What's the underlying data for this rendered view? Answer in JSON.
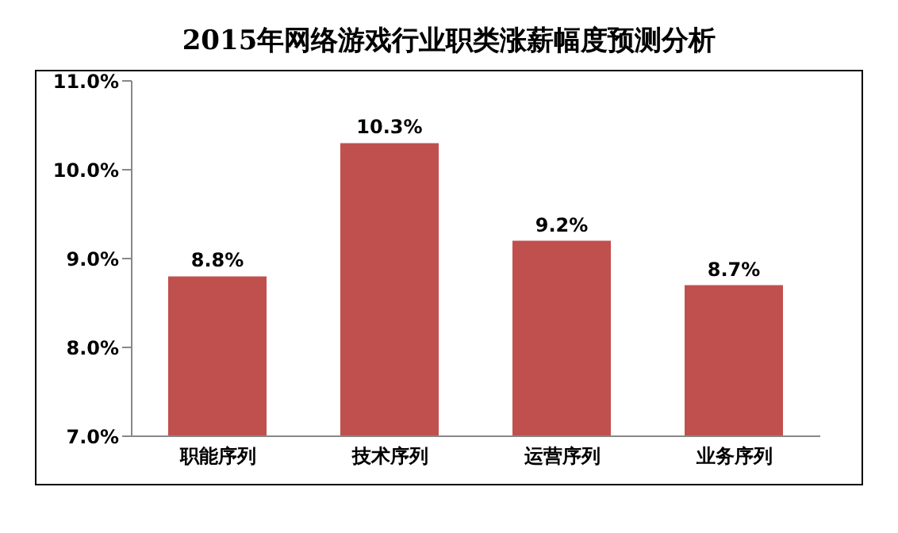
{
  "chart_data": {
    "type": "bar",
    "title": "2015年网络游戏行业职类涨薪幅度预测分析",
    "categories": [
      "职能序列",
      "技术序列",
      "运营序列",
      "业务序列"
    ],
    "values": [
      8.8,
      10.3,
      9.2,
      8.7
    ],
    "value_labels": [
      "8.8%",
      "10.3%",
      "9.2%",
      "8.7%"
    ],
    "color": "#c0504d",
    "ylim": [
      7,
      11
    ],
    "yticks": [
      {
        "value": 7,
        "label": "7.0%"
      },
      {
        "value": 8,
        "label": "8.0%"
      },
      {
        "value": 9,
        "label": "9.0%"
      },
      {
        "value": 10,
        "label": "10.0%"
      },
      {
        "value": 11,
        "label": "11.0%"
      }
    ],
    "grid": false
  }
}
